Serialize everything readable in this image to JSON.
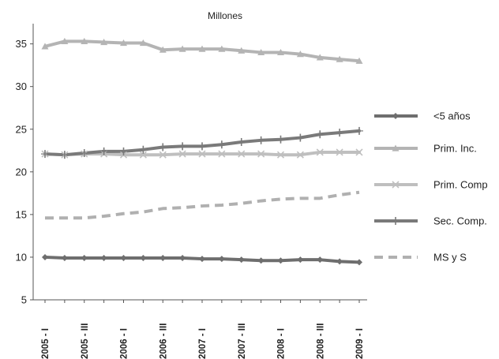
{
  "chart_data": {
    "type": "line",
    "title": "Millones",
    "xlabel": "",
    "ylabel": "",
    "ylim": [
      5,
      37
    ],
    "yticks": [
      5,
      10,
      15,
      20,
      25,
      30,
      35
    ],
    "grid": false,
    "legend_position": "right",
    "x_tick_labels": [
      "2005 - I",
      "2005 - III",
      "2006 - I",
      "2006 - III",
      "2007 - I",
      "2007 - III",
      "2008 - I",
      "2008 - III",
      "2009 - I"
    ],
    "series": [
      {
        "name": "<5 años",
        "color": "#6e6e6e",
        "marker": "diamond",
        "dash": "solid",
        "values": [
          10.0,
          9.9,
          9.9,
          9.9,
          9.9,
          9.9,
          9.9,
          9.9,
          9.8,
          9.8,
          9.7,
          9.6,
          9.6,
          9.7,
          9.7,
          9.5,
          9.4
        ]
      },
      {
        "name": "Prim. Inc.",
        "color": "#b4b4b4",
        "marker": "triangle",
        "dash": "solid",
        "values": [
          34.7,
          35.3,
          35.3,
          35.2,
          35.1,
          35.1,
          34.3,
          34.4,
          34.4,
          34.4,
          34.2,
          34.0,
          34.0,
          33.8,
          33.4,
          33.2,
          33.0
        ]
      },
      {
        "name": "Prim. Comp",
        "color": "#bfbfbf",
        "marker": "x",
        "dash": "solid",
        "values": [
          22.1,
          22.0,
          22.1,
          22.1,
          22.0,
          22.0,
          22.0,
          22.1,
          22.1,
          22.1,
          22.1,
          22.1,
          22.0,
          22.0,
          22.3,
          22.3,
          22.3
        ]
      },
      {
        "name": "Sec. Comp.",
        "color": "#7a7a7a",
        "marker": "plus",
        "dash": "solid",
        "values": [
          22.1,
          22.0,
          22.2,
          22.4,
          22.4,
          22.6,
          22.9,
          23.0,
          23.0,
          23.2,
          23.5,
          23.7,
          23.8,
          24.0,
          24.4,
          24.6,
          24.8
        ]
      },
      {
        "name": "MS y S",
        "color": "#b0b0b0",
        "marker": "none",
        "dash": "dashed",
        "values": [
          14.6,
          14.6,
          14.6,
          14.8,
          15.1,
          15.3,
          15.7,
          15.8,
          16.0,
          16.1,
          16.3,
          16.6,
          16.8,
          16.9,
          16.9,
          17.3,
          17.6
        ]
      }
    ]
  }
}
